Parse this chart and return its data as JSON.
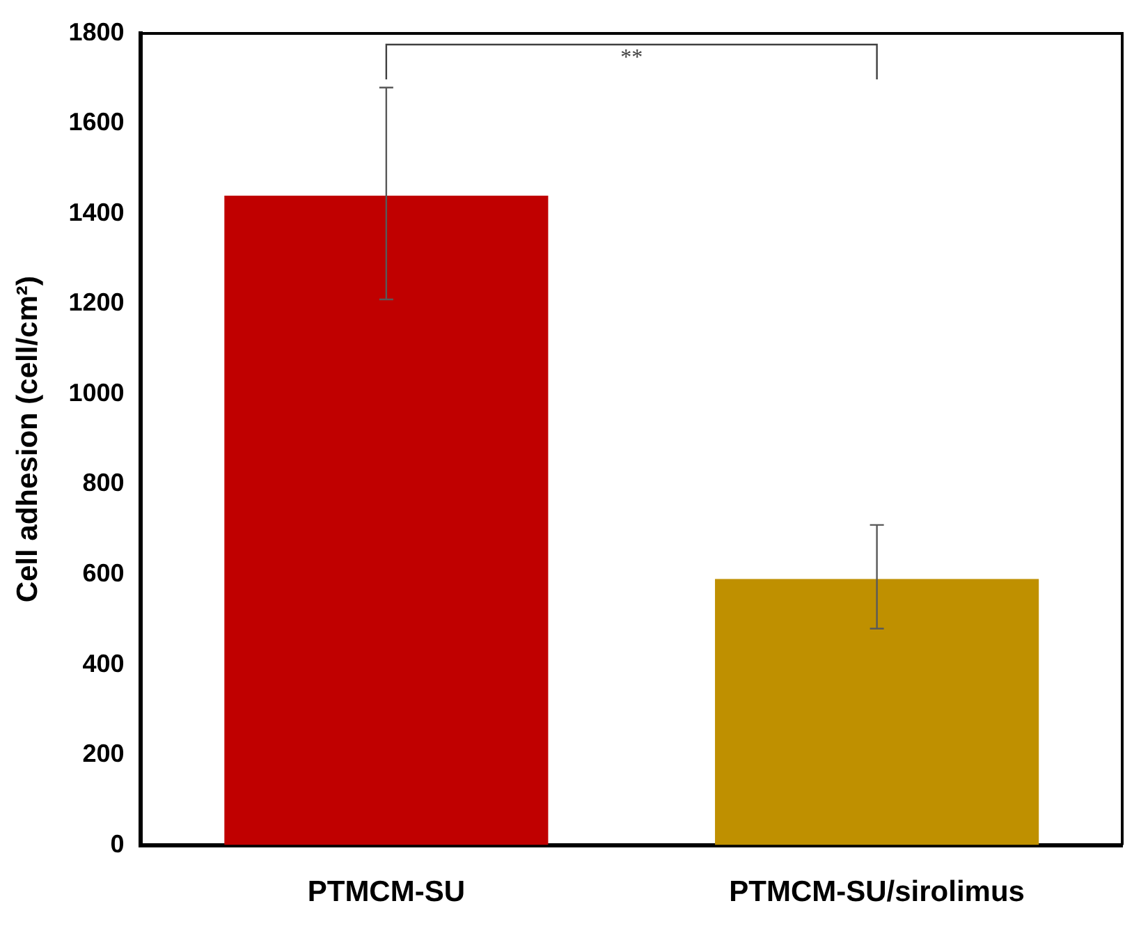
{
  "chart_data": {
    "type": "bar",
    "ylabel": "Cell adhesion (cell/cm²)",
    "categories": [
      "PTMCM-SU",
      "PTMCM-SU/sirolimus"
    ],
    "values": [
      1440,
      590
    ],
    "colors": [
      "#c00000",
      "#bf9000"
    ],
    "errors": [
      [
        1210,
        1680
      ],
      [
        480,
        710
      ]
    ],
    "ylim": [
      0,
      1800
    ],
    "yticks": [
      0,
      200,
      400,
      600,
      800,
      1000,
      1200,
      1400,
      1600,
      1800
    ],
    "grid": false,
    "legend": false,
    "annotations": [
      "**"
    ]
  }
}
